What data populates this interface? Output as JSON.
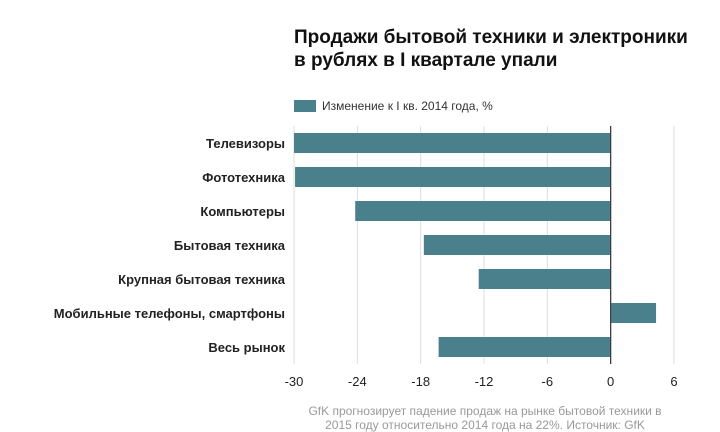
{
  "chart_data": {
    "type": "bar",
    "orientation": "horizontal",
    "title": "Продажи бытовой техники и электроники в рублях в I квартале упали",
    "legend": "Изменение к I кв. 2014 года, %",
    "categories": [
      "Телевизоры",
      "Фототехника",
      "Компьютеры",
      "Бытовая техника",
      "Крупная бытовая техника",
      "Мобильные телефоны, смартфоны",
      "Весь рынок"
    ],
    "values": [
      -30,
      -29.9,
      -24.2,
      -17.7,
      -12.5,
      4.3,
      -16.3
    ],
    "xlim": [
      -30,
      6
    ],
    "xticks": [
      "-30",
      "-24",
      "-18",
      "-12",
      "-6",
      "0",
      "6"
    ],
    "grid": true,
    "color": "#4a7f8c",
    "note": "GfK прогнозирует падение продаж на рынке бытовой техники в 2015 году относительно 2014 года на 22%. Источник: GfK"
  }
}
